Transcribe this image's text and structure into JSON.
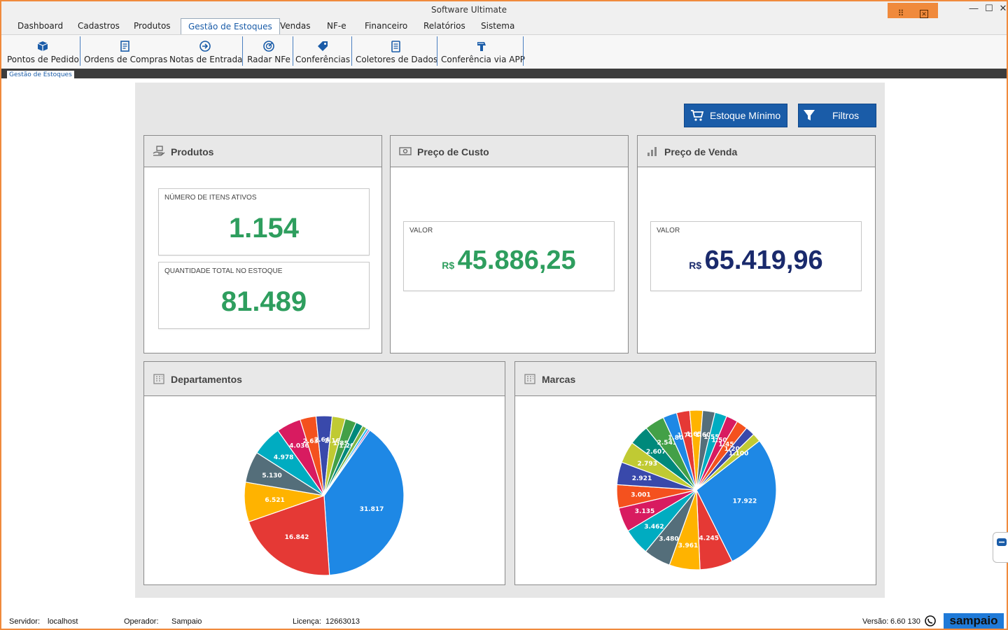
{
  "window": {
    "title": "Software Ultimate"
  },
  "menu": {
    "items": [
      "Dashboard",
      "Cadastros",
      "Produtos",
      "Gestão de Estoques",
      "Vendas",
      "NF-e",
      "Financeiro",
      "Relatórios",
      "Sistema"
    ],
    "active": "Gestão de Estoques"
  },
  "ribbon": {
    "items": [
      {
        "label": "Pontos de Pedido",
        "icon": "box-icon"
      },
      {
        "label": "Ordens de Compras",
        "icon": "document-icon"
      },
      {
        "label": "Notas de Entrada",
        "icon": "arrow-in-icon"
      },
      {
        "label": "Radar NFe",
        "icon": "radar-icon"
      },
      {
        "label": "Conferências",
        "icon": "tag-icon"
      },
      {
        "label": "Coletores de Dados",
        "icon": "clipboard-icon"
      },
      {
        "label": "Conferência via APP",
        "icon": "scanner-icon"
      }
    ]
  },
  "doc_tab": "Gestão de Estoques",
  "actions": {
    "min_stock": "Estoque Mínimo",
    "filters": "Filtros"
  },
  "produtos": {
    "title": "Produtos",
    "active_label": "NÚMERO DE ITENS ATIVOS",
    "active_value": "1.154",
    "qty_label": "QUANTIDADE TOTAL NO ESTOQUE",
    "qty_value": "81.489"
  },
  "custo": {
    "title": "Preço de Custo",
    "label": "VALOR",
    "currency": "R$",
    "value": "45.886,25"
  },
  "venda": {
    "title": "Preço de Venda",
    "label": "VALOR",
    "currency": "R$",
    "value": "65.419,96"
  },
  "departamentos": {
    "title": "Departamentos"
  },
  "marcas": {
    "title": "Marcas"
  },
  "chart_data": [
    {
      "type": "pie",
      "title": "Departamentos",
      "slices": [
        {
          "value": 31817,
          "label": "31.817",
          "color": "#1e88e5"
        },
        {
          "value": 16842,
          "label": "16.842",
          "color": "#e53935"
        },
        {
          "value": 6521,
          "label": "6.521",
          "color": "#ffb300"
        },
        {
          "value": 5130,
          "label": "5.130",
          "color": "#546e7a"
        },
        {
          "value": 4978,
          "label": "4.978",
          "color": "#00acc1"
        },
        {
          "value": 4036,
          "label": "4.036",
          "color": "#d81b60"
        },
        {
          "value": 2633,
          "label": "2.633",
          "color": "#f4511e"
        },
        {
          "value": 2640,
          "label": "2.640",
          "color": "#3949ab"
        },
        {
          "value": 2166,
          "label": "2.166",
          "color": "#c0ca33"
        },
        {
          "value": 1850,
          "label": "1.850",
          "color": "#43a047"
        },
        {
          "value": 1200,
          "label": "1.200",
          "color": "#00897b"
        },
        {
          "value": 700,
          "label": "",
          "color": "#7cb342"
        },
        {
          "value": 400,
          "label": "",
          "color": "#29b6f6"
        },
        {
          "value": 250,
          "label": "",
          "color": "#8e24aa"
        }
      ]
    },
    {
      "type": "pie",
      "title": "Marcas",
      "slices": [
        {
          "value": 17922,
          "label": "17.922",
          "color": "#1e88e5"
        },
        {
          "value": 4245,
          "label": "4.245",
          "color": "#e53935"
        },
        {
          "value": 3961,
          "label": "3.961",
          "color": "#ffb300"
        },
        {
          "value": 3480,
          "label": "3.480",
          "color": "#546e7a"
        },
        {
          "value": 3462,
          "label": "3.462",
          "color": "#00acc1"
        },
        {
          "value": 3135,
          "label": "3.135",
          "color": "#d81b60"
        },
        {
          "value": 3001,
          "label": "3.001",
          "color": "#f4511e"
        },
        {
          "value": 2921,
          "label": "2.921",
          "color": "#3949ab"
        },
        {
          "value": 2793,
          "label": "2.793",
          "color": "#c0ca33"
        },
        {
          "value": 2607,
          "label": "2.607",
          "color": "#00897b"
        },
        {
          "value": 2541,
          "label": "2.541",
          "color": "#43a047"
        },
        {
          "value": 1800,
          "label": "1.800",
          "color": "#1e88e5"
        },
        {
          "value": 1700,
          "label": "1.700",
          "color": "#e53935"
        },
        {
          "value": 1650,
          "label": "1.650",
          "color": "#ffb300"
        },
        {
          "value": 1600,
          "label": "1.600",
          "color": "#546e7a"
        },
        {
          "value": 1550,
          "label": "1.550",
          "color": "#00acc1"
        },
        {
          "value": 1500,
          "label": "1.500",
          "color": "#d81b60"
        },
        {
          "value": 1450,
          "label": "1.450",
          "color": "#f4511e"
        },
        {
          "value": 1200,
          "label": "1.200",
          "color": "#3949ab"
        },
        {
          "value": 1100,
          "label": "1.100",
          "color": "#c0ca33"
        }
      ]
    }
  ],
  "status": {
    "server_label": "Servidor:",
    "server": "localhost",
    "operator_label": "Operador:",
    "operator": "Sampaio",
    "license_label": "Licença:",
    "license": "12663013",
    "version_label": "Versão:",
    "version": "6.60 130",
    "brand": "sampaio"
  }
}
